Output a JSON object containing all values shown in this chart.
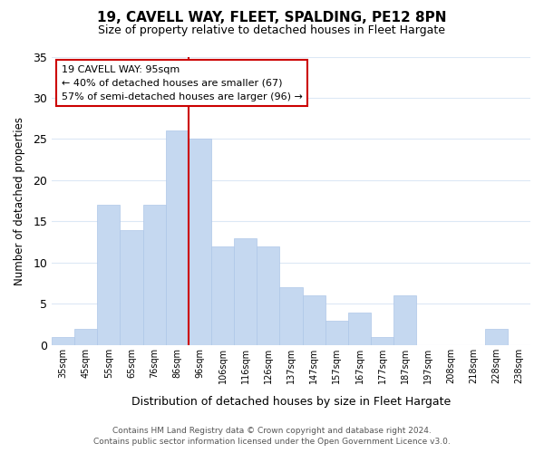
{
  "title": "19, CAVELL WAY, FLEET, SPALDING, PE12 8PN",
  "subtitle": "Size of property relative to detached houses in Fleet Hargate",
  "xlabel": "Distribution of detached houses by size in Fleet Hargate",
  "ylabel": "Number of detached properties",
  "bin_labels": [
    "35sqm",
    "45sqm",
    "55sqm",
    "65sqm",
    "76sqm",
    "86sqm",
    "96sqm",
    "106sqm",
    "116sqm",
    "126sqm",
    "137sqm",
    "147sqm",
    "157sqm",
    "167sqm",
    "177sqm",
    "187sqm",
    "197sqm",
    "208sqm",
    "218sqm",
    "228sqm",
    "238sqm"
  ],
  "counts": [
    1,
    2,
    17,
    14,
    17,
    26,
    25,
    12,
    13,
    12,
    7,
    6,
    3,
    4,
    1,
    6,
    0,
    0,
    0,
    2,
    0
  ],
  "ylim": [
    0,
    35
  ],
  "yticks": [
    0,
    5,
    10,
    15,
    20,
    25,
    30,
    35
  ],
  "bar_color": "#c5d8f0",
  "bar_edge_color": "#aec6e8",
  "reference_line_color": "#cc0000",
  "annotation_title": "19 CAVELL WAY: 95sqm",
  "annotation_line1": "← 40% of detached houses are smaller (67)",
  "annotation_line2": "57% of semi-detached houses are larger (96) →",
  "annotation_box_facecolor": "#ffffff",
  "annotation_box_edgecolor": "#cc0000",
  "footer_line1": "Contains HM Land Registry data © Crown copyright and database right 2024.",
  "footer_line2": "Contains public sector information licensed under the Open Government Licence v3.0.",
  "background_color": "#ffffff",
  "grid_color": "#dce8f5"
}
